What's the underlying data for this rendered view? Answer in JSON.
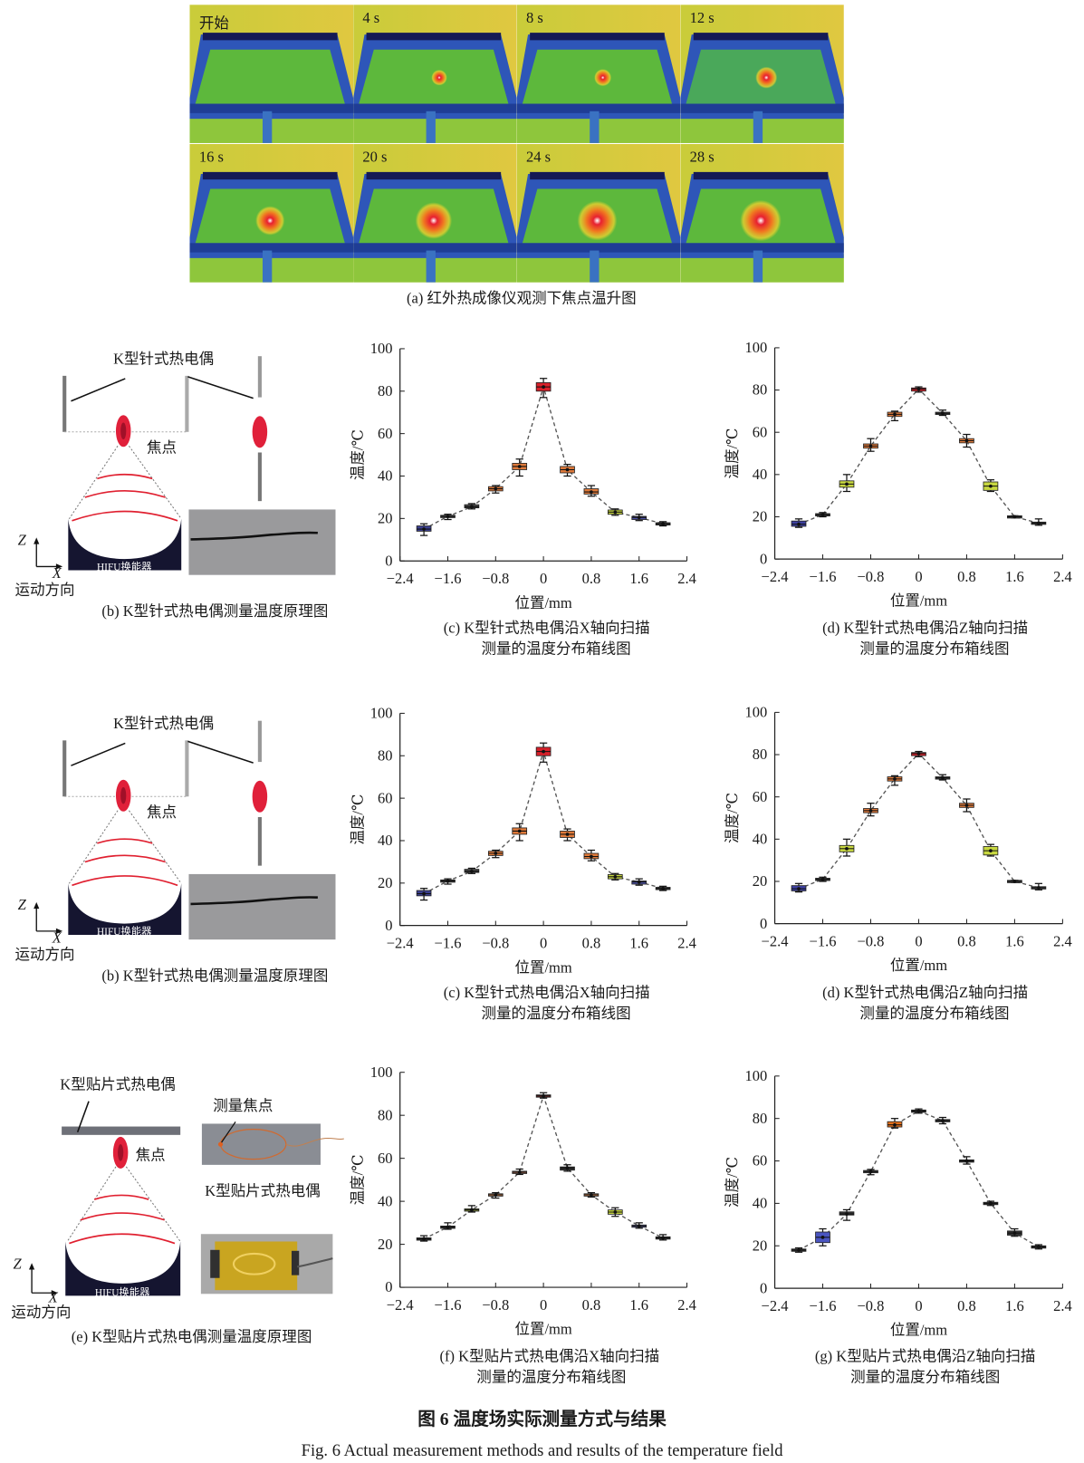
{
  "panel_a": {
    "frames": [
      "开始",
      "4 s",
      "8 s",
      "12 s",
      "16 s",
      "20 s",
      "24 s",
      "28 s"
    ],
    "focus_heat_levels": [
      0,
      0.15,
      0.2,
      0.35,
      0.6,
      0.85,
      0.95,
      1.0
    ],
    "caption": "(a) 红外热成像仪观测下焦点温升图"
  },
  "row1": {
    "diagram": {
      "probe_label": "K型针式热电偶",
      "focus_label": "焦点",
      "transducer_label": "HIFU换能器",
      "axis_z": "Z",
      "axis_x": "X",
      "motion_label": "运动方向",
      "caption": "(b) K型针式热电偶测量温度原理图"
    },
    "chart_c_caption": [
      "(c) K型针式热电偶沿X轴向扫描",
      "测量的温度分布箱线图"
    ],
    "chart_d_caption": [
      "(d) K型针式热电偶沿Z轴向扫描",
      "测量的温度分布箱线图"
    ]
  },
  "row2": {
    "diagram": {
      "probe_label": "K型针式热电偶",
      "focus_label": "焦点",
      "transducer_label": "HIFU换能器",
      "axis_z": "Z",
      "axis_x": "X",
      "motion_label": "运动方向",
      "caption": "(b) K型针式热电偶测量温度原理图"
    },
    "chart_c_caption": [
      "(c) K型针式热电偶沿X轴向扫描",
      "测量的温度分布箱线图"
    ],
    "chart_d_caption": [
      "(d) K型针式热电偶沿Z轴向扫描",
      "测量的温度分布箱线图"
    ]
  },
  "row3": {
    "diagram": {
      "probe_label": "K型贴片式热电偶",
      "focus_label": "焦点",
      "measure_focus_label": "测量焦点",
      "photo_label": "K型贴片式热电偶",
      "transducer_label": "HIFU换能器",
      "axis_z": "Z",
      "axis_x": "X",
      "motion_label": "运动方向",
      "caption": "(e) K型贴片式热电偶测量温度原理图"
    },
    "chart_f_caption": [
      "(f) K型贴片式热电偶沿X轴向扫描",
      "测量的温度分布箱线图"
    ],
    "chart_g_caption": [
      "(g) K型贴片式热电偶沿Z轴向扫描",
      "测量的温度分布箱线图"
    ]
  },
  "figure_caption": {
    "zh": "图 6  温度场实际测量方式与结果",
    "en": "Fig. 6  Actual measurement methods and results of the temperature field"
  },
  "chart_data": [
    {
      "id": "c",
      "type": "box",
      "xlabel": "位置/mm",
      "ylabel": "温度/℃",
      "xlim": [
        -2.4,
        2.4
      ],
      "ylim": [
        0,
        100
      ],
      "xticks": [
        "−2.4",
        "−1.6",
        "−0.8",
        "0",
        "0.8",
        "1.6",
        "2.4"
      ],
      "xtick_values": [
        -2.4,
        -1.6,
        -0.8,
        0,
        0.8,
        1.6,
        2.4
      ],
      "yticks": [
        "0",
        "20",
        "40",
        "60",
        "80",
        "100"
      ],
      "ytick_values": [
        0,
        20,
        40,
        60,
        80,
        100
      ],
      "x": [
        -2.0,
        -1.6,
        -1.2,
        -0.8,
        -0.4,
        0,
        0.4,
        0.8,
        1.2,
        1.6,
        2.0
      ],
      "median": [
        15,
        21,
        25.5,
        34,
        44.5,
        82,
        43,
        32.5,
        23,
        20.5,
        17.5
      ],
      "q1": [
        14,
        20.5,
        25,
        33,
        43,
        80,
        41.5,
        31.5,
        22,
        19.5,
        17
      ],
      "q3": [
        16.5,
        21.5,
        26.5,
        35,
        46,
        84,
        44.5,
        34,
        24,
        21,
        18
      ],
      "min": [
        12,
        19.5,
        24.5,
        32,
        40,
        77,
        40,
        30.5,
        21.5,
        19,
        16.5
      ],
      "max": [
        17.5,
        22,
        27,
        35.5,
        48,
        86,
        45.5,
        35.5,
        24.5,
        22,
        18.5
      ],
      "colors": [
        "#3b3f8f",
        "#444444",
        "#444444",
        "#e07a3a",
        "#e07a3a",
        "#d8202a",
        "#e07a3a",
        "#e07a3a",
        "#c8d840",
        "#4a4fa0",
        "#444444"
      ]
    },
    {
      "id": "d",
      "type": "box",
      "xlabel": "位置/mm",
      "ylabel": "温度/℃",
      "xlim": [
        -2.4,
        2.4
      ],
      "ylim": [
        0,
        100
      ],
      "xticks": [
        "−2.4",
        "−1.6",
        "−0.8",
        "0",
        "0.8",
        "1.6",
        "2.4"
      ],
      "xtick_values": [
        -2.4,
        -1.6,
        -0.8,
        0,
        0.8,
        1.6,
        2.4
      ],
      "yticks": [
        "0",
        "20",
        "40",
        "60",
        "80",
        "100"
      ],
      "ytick_values": [
        0,
        20,
        40,
        60,
        80,
        100
      ],
      "x": [
        -2.0,
        -1.6,
        -1.2,
        -0.8,
        -0.4,
        0,
        0.4,
        0.8,
        1.2,
        1.6,
        2.0
      ],
      "median": [
        16.5,
        21,
        35.5,
        53.5,
        68.5,
        80.5,
        69,
        56,
        34.5,
        20,
        17
      ],
      "q1": [
        15.5,
        20.5,
        34,
        52.5,
        67.5,
        79.5,
        68.5,
        55,
        32.5,
        19.5,
        16.5
      ],
      "q3": [
        18,
        21.5,
        37,
        54.5,
        69.5,
        81,
        69.5,
        57,
        36.5,
        20.5,
        17.5
      ],
      "min": [
        15,
        20,
        32,
        51,
        65.5,
        79,
        68,
        53,
        32,
        19.5,
        16
      ],
      "max": [
        19,
        22,
        40,
        57,
        70,
        81.5,
        70.5,
        59,
        37.5,
        20.5,
        19
      ],
      "colors": [
        "#3d40a0",
        "#444444",
        "#c8d840",
        "#e07a3a",
        "#e07a3a",
        "#d8202a",
        "#444444",
        "#e07a3a",
        "#c8d840",
        "#444444",
        "#444444"
      ]
    },
    {
      "id": "c-repeat",
      "type": "box",
      "xlabel": "位置/mm",
      "ylabel": "温度/℃",
      "xlim": [
        -2.4,
        2.4
      ],
      "ylim": [
        0,
        100
      ],
      "xticks": [
        "−2.4",
        "−1.6",
        "−0.8",
        "0",
        "0.8",
        "1.6",
        "2.4"
      ],
      "xtick_values": [
        -2.4,
        -1.6,
        -0.8,
        0,
        0.8,
        1.6,
        2.4
      ],
      "yticks": [
        "0",
        "20",
        "40",
        "60",
        "80",
        "100"
      ],
      "ytick_values": [
        0,
        20,
        40,
        60,
        80,
        100
      ],
      "x": [
        -2.0,
        -1.6,
        -1.2,
        -0.8,
        -0.4,
        0,
        0.4,
        0.8,
        1.2,
        1.6,
        2.0
      ],
      "median": [
        15,
        21,
        25.5,
        34,
        44.5,
        82,
        43,
        32.5,
        23,
        20.5,
        17.5
      ],
      "q1": [
        14,
        20.5,
        25,
        33,
        43,
        80,
        41.5,
        31.5,
        22,
        19.5,
        17
      ],
      "q3": [
        16.5,
        21.5,
        26.5,
        35,
        46,
        84,
        44.5,
        34,
        24,
        21,
        18
      ],
      "min": [
        12,
        19.5,
        24.5,
        32,
        40,
        77,
        40,
        30.5,
        21.5,
        19,
        16.5
      ],
      "max": [
        17.5,
        22,
        27,
        35.5,
        48,
        86,
        45.5,
        35.5,
        24.5,
        22,
        18.5
      ],
      "colors": [
        "#3b3f8f",
        "#444444",
        "#444444",
        "#e07a3a",
        "#e07a3a",
        "#d8202a",
        "#e07a3a",
        "#e07a3a",
        "#c8d840",
        "#4a4fa0",
        "#444444"
      ]
    },
    {
      "id": "d-repeat",
      "type": "box",
      "xlabel": "位置/mm",
      "ylabel": "温度/℃",
      "xlim": [
        -2.4,
        2.4
      ],
      "ylim": [
        0,
        100
      ],
      "xticks": [
        "−2.4",
        "−1.6",
        "−0.8",
        "0",
        "0.8",
        "1.6",
        "2.4"
      ],
      "xtick_values": [
        -2.4,
        -1.6,
        -0.8,
        0,
        0.8,
        1.6,
        2.4
      ],
      "yticks": [
        "0",
        "20",
        "40",
        "60",
        "80",
        "100"
      ],
      "ytick_values": [
        0,
        20,
        40,
        60,
        80,
        100
      ],
      "x": [
        -2.0,
        -1.6,
        -1.2,
        -0.8,
        -0.4,
        0,
        0.4,
        0.8,
        1.2,
        1.6,
        2.0
      ],
      "median": [
        16.5,
        21,
        35.5,
        53.5,
        68.5,
        80.5,
        69,
        56,
        34.5,
        20,
        17
      ],
      "q1": [
        15.5,
        20.5,
        34,
        52.5,
        67.5,
        79.5,
        68.5,
        55,
        32.5,
        19.5,
        16.5
      ],
      "q3": [
        18,
        21.5,
        37,
        54.5,
        69.5,
        81,
        69.5,
        57,
        36.5,
        20.5,
        17.5
      ],
      "min": [
        15,
        20,
        32,
        51,
        65.5,
        79,
        68,
        53,
        32,
        19.5,
        16
      ],
      "max": [
        19,
        22,
        40,
        57,
        70,
        81.5,
        70.5,
        59,
        37.5,
        20.5,
        19
      ],
      "colors": [
        "#3d40a0",
        "#444444",
        "#c8d840",
        "#e07a3a",
        "#e07a3a",
        "#d8202a",
        "#444444",
        "#e07a3a",
        "#c8d840",
        "#444444",
        "#444444"
      ]
    },
    {
      "id": "f",
      "type": "box",
      "xlabel": "位置/mm",
      "ylabel": "温度/℃",
      "xlim": [
        -2.4,
        2.4
      ],
      "ylim": [
        0,
        100
      ],
      "xticks": [
        "−2.4",
        "−1.6",
        "−0.8",
        "0",
        "0.8",
        "1.6",
        "2.4"
      ],
      "xtick_values": [
        -2.4,
        -1.6,
        -0.8,
        0,
        0.8,
        1.6,
        2.4
      ],
      "yticks": [
        "0",
        "20",
        "40",
        "60",
        "80",
        "100"
      ],
      "ytick_values": [
        0,
        20,
        40,
        60,
        80,
        100
      ],
      "x": [
        -2.0,
        -1.6,
        -1.2,
        -0.8,
        -0.4,
        0,
        0.4,
        0.8,
        1.2,
        1.6,
        2.0
      ],
      "median": [
        22.5,
        28,
        36,
        43,
        53.5,
        89,
        55.5,
        43,
        35,
        28.5,
        23
      ],
      "q1": [
        22,
        27.5,
        35.5,
        42.5,
        53,
        88.5,
        54.5,
        42.5,
        34,
        28,
        22.5
      ],
      "q3": [
        23,
        28.5,
        36.5,
        43.5,
        54,
        89.5,
        56,
        43.5,
        36,
        29,
        23.5
      ],
      "min": [
        21.5,
        27,
        35,
        41.5,
        52.5,
        88,
        54,
        42,
        33,
        27.5,
        22
      ],
      "max": [
        24,
        30,
        38,
        44,
        55,
        90.5,
        57,
        44,
        37,
        30,
        24.5
      ],
      "colors": [
        "#333333",
        "#333333",
        "#a0b040",
        "#e08a50",
        "#d08060",
        "#8a3030",
        "#333333",
        "#e08a50",
        "#c8d840",
        "#5a5fa0",
        "#333333"
      ]
    },
    {
      "id": "g",
      "type": "box",
      "xlabel": "位置/mm",
      "ylabel": "温度/℃",
      "xlim": [
        -2.4,
        2.4
      ],
      "ylim": [
        0,
        100
      ],
      "xticks": [
        "−2.4",
        "−1.6",
        "−0.8",
        "0",
        "0.8",
        "1.6",
        "2.4"
      ],
      "xtick_values": [
        -2.4,
        -1.6,
        -0.8,
        0,
        0.8,
        1.6,
        2.4
      ],
      "yticks": [
        "0",
        "20",
        "40",
        "60",
        "80",
        "100"
      ],
      "ytick_values": [
        0,
        20,
        40,
        60,
        80,
        100
      ],
      "x": [
        -2.0,
        -1.6,
        -1.2,
        -0.8,
        -0.4,
        0,
        0.4,
        0.8,
        1.2,
        1.6,
        2.0
      ],
      "median": [
        18,
        24,
        35,
        55,
        77,
        83.5,
        79,
        60,
        40,
        26,
        19.5
      ],
      "q1": [
        17.5,
        21.5,
        34.5,
        54.5,
        76,
        83,
        78.5,
        59.5,
        39.5,
        25,
        19
      ],
      "q3": [
        18.5,
        26.5,
        36,
        55.5,
        78.5,
        84,
        79.5,
        60.5,
        40.5,
        27,
        20
      ],
      "min": [
        17,
        20,
        32,
        53.5,
        75.5,
        82.5,
        77.5,
        58.5,
        39,
        24.5,
        18.5
      ],
      "max": [
        19,
        28,
        37,
        56,
        80,
        84.5,
        80.5,
        62,
        41,
        28,
        20.5
      ],
      "colors": [
        "#333333",
        "#4a55c0",
        "#333333",
        "#555555",
        "#e5701a",
        "#333333",
        "#333333",
        "#333333",
        "#333333",
        "#333333",
        "#333333"
      ]
    }
  ]
}
